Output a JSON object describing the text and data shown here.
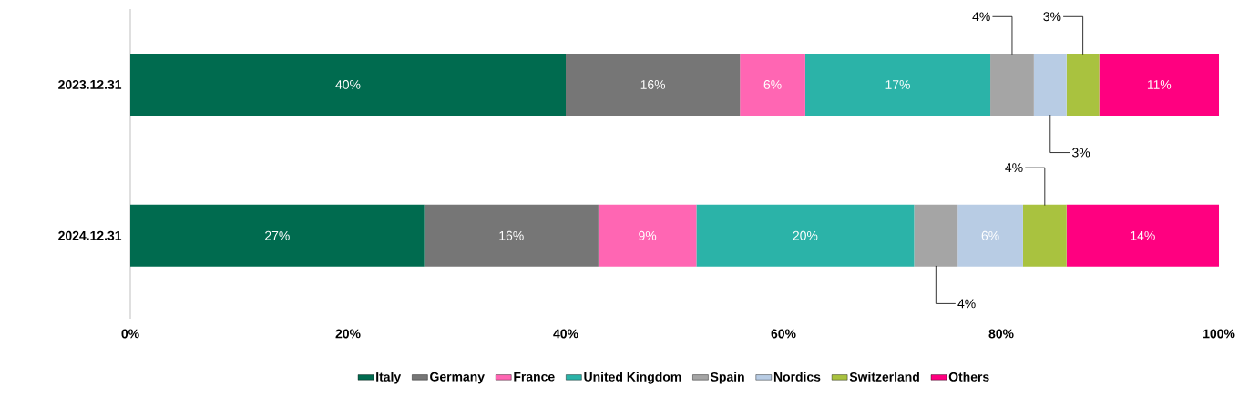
{
  "chart_data": {
    "type": "bar",
    "orientation": "horizontal",
    "stacked": true,
    "categories": [
      "2023.12.31",
      "2024.12.31"
    ],
    "series": [
      {
        "name": "Italy",
        "color": "#006b4f",
        "values": [
          40,
          27
        ],
        "value_labels": [
          "40%",
          "27%"
        ]
      },
      {
        "name": "Germany",
        "color": "#767676",
        "values": [
          16,
          16
        ],
        "value_labels": [
          "16%",
          "16%"
        ]
      },
      {
        "name": "France",
        "color": "#ff66b3",
        "values": [
          6,
          9
        ],
        "value_labels": [
          "6%",
          "9%"
        ]
      },
      {
        "name": "United Kingdom",
        "color": "#2bb3a8",
        "values": [
          17,
          20
        ],
        "value_labels": [
          "17%",
          "20%"
        ]
      },
      {
        "name": "Spain",
        "color": "#a5a5a5",
        "values": [
          4,
          4
        ],
        "value_labels": [
          "4%",
          "4%"
        ]
      },
      {
        "name": "Nordics",
        "color": "#b8cce4",
        "values": [
          3,
          6
        ],
        "value_labels": [
          "3%",
          "6%"
        ]
      },
      {
        "name": "Switzerland",
        "color": "#a9c23f",
        "values": [
          3,
          4
        ],
        "value_labels": [
          "3%",
          "4%"
        ]
      },
      {
        "name": "Others",
        "color": "#ff0080",
        "values": [
          11,
          14
        ],
        "value_labels": [
          "11%",
          "14%"
        ]
      }
    ],
    "xlim": [
      0,
      100
    ],
    "xticks": [
      {
        "value": 0,
        "label": "0%"
      },
      {
        "value": 20,
        "label": "20%"
      },
      {
        "value": 40,
        "label": "40%"
      },
      {
        "value": 60,
        "label": "60%"
      },
      {
        "value": 80,
        "label": "80%"
      },
      {
        "value": 100,
        "label": "100%"
      }
    ],
    "grid": false,
    "legend": "bottom"
  }
}
